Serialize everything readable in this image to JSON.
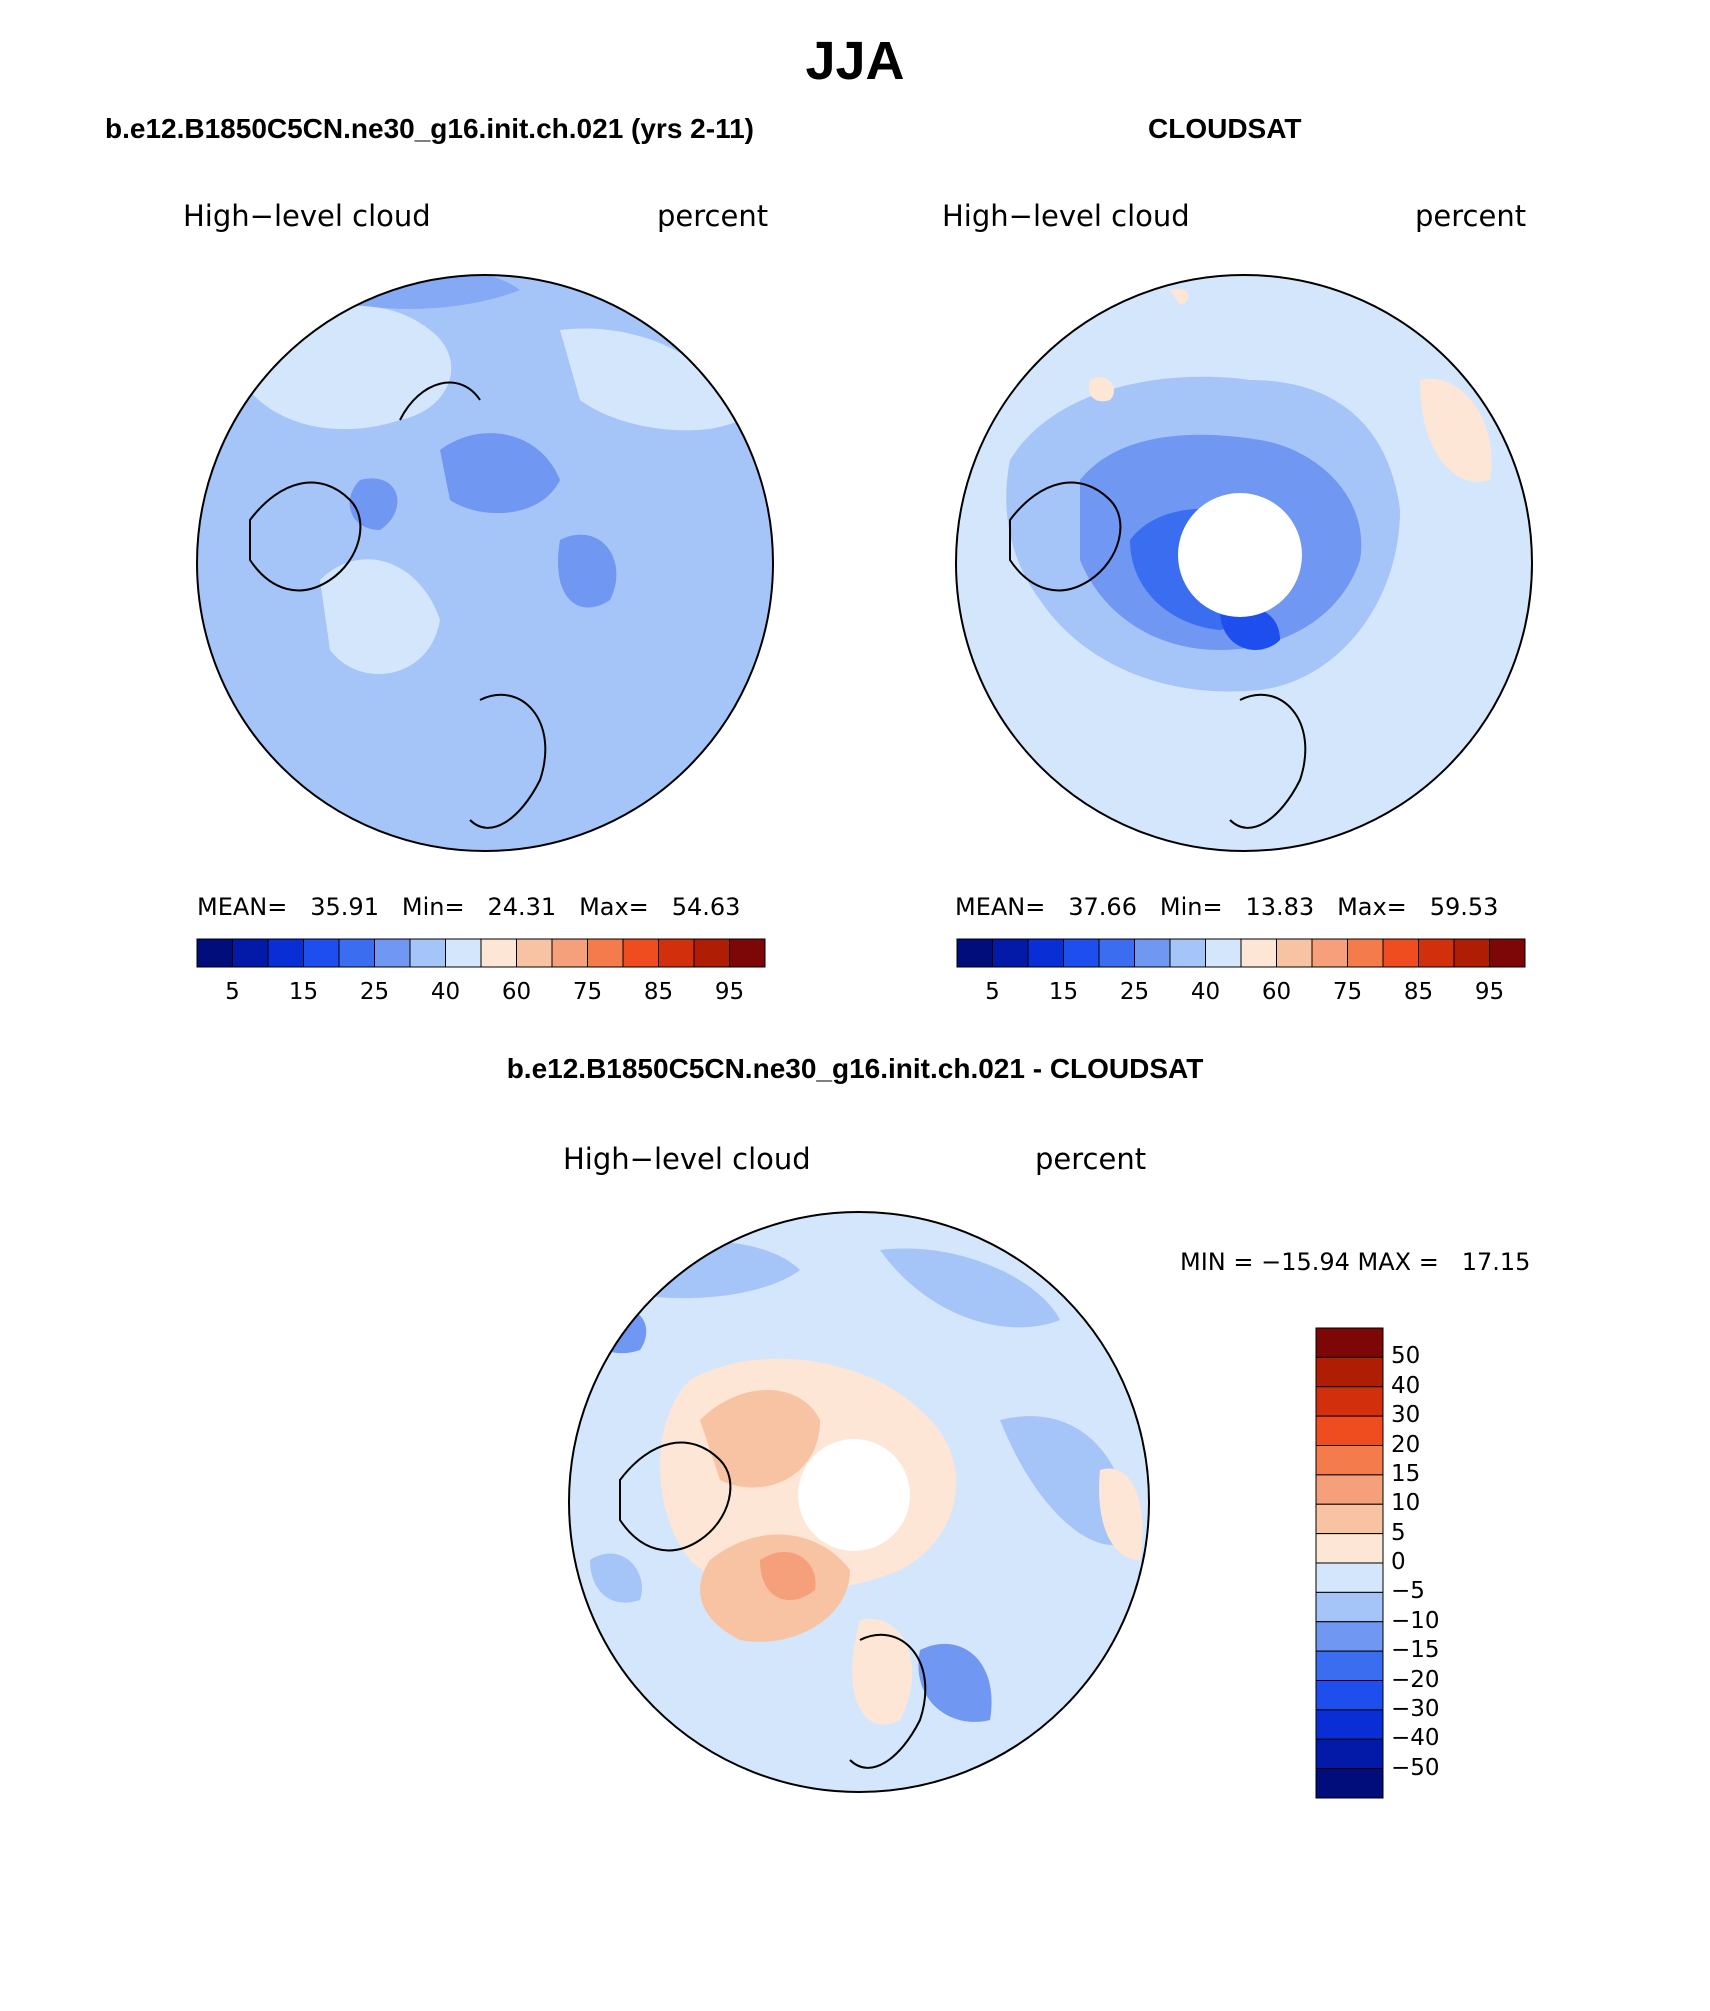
{
  "title": "JJA",
  "panels": [
    {
      "id": "model",
      "title": "b.e12.B1850C5CN.ne30_g16.init.ch.021 (yrs 2-11)",
      "variable": "High−level cloud",
      "units": "percent",
      "stats": {
        "mean_label": "MEAN=",
        "mean": "35.91",
        "min_label": "Min=",
        "min": "24.31",
        "max_label": "Max=",
        "max": "54.63"
      },
      "polar_hole": false,
      "base_color": "#a5c4f7"
    },
    {
      "id": "obs",
      "title": "CLOUDSAT",
      "variable": "High−level cloud",
      "units": "percent",
      "stats": {
        "mean_label": "MEAN=",
        "mean": "37.66",
        "min_label": "Min=",
        "min": "13.83",
        "max_label": "Max=",
        "max": "59.53"
      },
      "polar_hole": true,
      "base_color": "#a5c4f7"
    },
    {
      "id": "diff",
      "title": "b.e12.B1850C5CN.ne30_g16.init.ch.021 - CLOUDSAT",
      "variable": "High−level cloud",
      "units": "percent",
      "minmax": "MIN = −15.94 MAX =   17.15",
      "polar_hole": true,
      "base_color": "#d4e6fb"
    }
  ],
  "colorbar_h": {
    "colors": [
      "#000d7a",
      "#0319a8",
      "#0a2ed6",
      "#1f4eef",
      "#3b6df0",
      "#7097f1",
      "#a5c4f7",
      "#d4e6fb",
      "#fde6d5",
      "#f8c3a3",
      "#f5a07a",
      "#f47b4b",
      "#ef4c20",
      "#d22f0d",
      "#b01d05",
      "#7d0707"
    ],
    "labels": [
      "5",
      "15",
      "25",
      "40",
      "60",
      "75",
      "85",
      "95"
    ]
  },
  "colorbar_v": {
    "colors": [
      "#7d0707",
      "#b01d05",
      "#d22f0d",
      "#ef4c20",
      "#f47b4b",
      "#f5a07a",
      "#f8c3a3",
      "#fde6d5",
      "#d4e6fb",
      "#a5c4f7",
      "#7097f1",
      "#3b6df0",
      "#1f4eef",
      "#0a2ed6",
      "#0319a8",
      "#000d7a"
    ],
    "labels": [
      "50",
      "40",
      "30",
      "20",
      "15",
      "10",
      "5",
      "0",
      "−5",
      "−10",
      "−15",
      "−20",
      "−30",
      "−40",
      "−50"
    ]
  },
  "chart_data": [
    {
      "type": "heatmap",
      "title": "b.e12.B1850C5CN.ne30_g16.init.ch.021 (yrs 2-11)",
      "variable": "High−level cloud",
      "units": "percent",
      "projection": "north polar stereographic",
      "mean": 35.91,
      "min": 24.31,
      "max": 54.63,
      "levels": [
        5,
        10,
        15,
        20,
        25,
        30,
        40,
        50,
        60,
        70,
        75,
        80,
        85,
        90,
        95
      ]
    },
    {
      "type": "heatmap",
      "title": "CLOUDSAT",
      "variable": "High−level cloud",
      "units": "percent",
      "projection": "north polar stereographic",
      "mean": 37.66,
      "min": 13.83,
      "max": 59.53,
      "levels": [
        5,
        10,
        15,
        20,
        25,
        30,
        40,
        50,
        60,
        70,
        75,
        80,
        85,
        90,
        95
      ]
    },
    {
      "type": "heatmap",
      "title": "b.e12.B1850C5CN.ne30_g16.init.ch.021 - CLOUDSAT",
      "variable": "High−level cloud",
      "units": "percent",
      "projection": "north polar stereographic",
      "min": -15.94,
      "max": 17.15,
      "levels": [
        -50,
        -40,
        -30,
        -20,
        -15,
        -10,
        -5,
        0,
        5,
        10,
        15,
        20,
        30,
        40,
        50
      ]
    }
  ]
}
